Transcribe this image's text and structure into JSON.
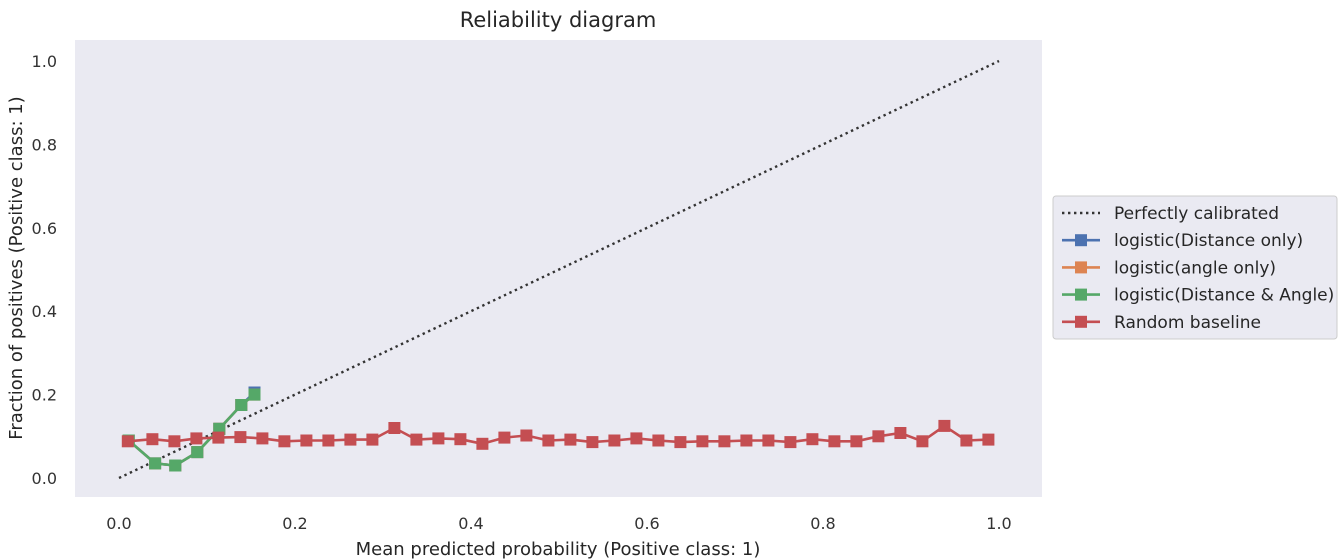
{
  "chart_data": {
    "type": "line",
    "title": "Reliability diagram",
    "xlabel": "Mean predicted probability (Positive class: 1)",
    "ylabel": "Fraction of positives (Positive class: 1)",
    "xlim": [
      -0.05,
      1.03
    ],
    "ylim": [
      -0.05,
      1.05
    ],
    "xticks": [
      "0.0",
      "0.2",
      "0.4",
      "0.6",
      "0.8",
      "1.0"
    ],
    "yticks": [
      "0.0",
      "0.2",
      "0.4",
      "0.6",
      "0.8",
      "1.0"
    ],
    "grid": false,
    "background": "#eaeaf2",
    "legend_position": "outside-right",
    "series": [
      {
        "name": "Perfectly calibrated",
        "color": "#333333",
        "style": "dotted",
        "marker": "none",
        "x": [
          0.0,
          1.0
        ],
        "y": [
          0.0,
          1.0
        ]
      },
      {
        "name": "logistic(Distance only)",
        "color": "#4c72b0",
        "style": "solid",
        "marker": "square",
        "x": [
          0.011,
          0.041,
          0.064,
          0.089,
          0.114,
          0.139,
          0.154
        ],
        "y": [
          0.09,
          0.035,
          0.03,
          0.062,
          0.118,
          0.175,
          0.205
        ]
      },
      {
        "name": "logistic(angle only)",
        "color": "#dd8452",
        "style": "solid",
        "marker": "square",
        "x": [
          0.011,
          0.041,
          0.064,
          0.089,
          0.114,
          0.139,
          0.154
        ],
        "y": [
          0.09,
          0.035,
          0.03,
          0.062,
          0.118,
          0.175,
          0.2
        ]
      },
      {
        "name": "logistic(Distance & Angle)",
        "color": "#55a868",
        "style": "solid",
        "marker": "square",
        "x": [
          0.011,
          0.041,
          0.064,
          0.089,
          0.114,
          0.139,
          0.154
        ],
        "y": [
          0.09,
          0.035,
          0.03,
          0.062,
          0.118,
          0.175,
          0.2
        ]
      },
      {
        "name": "Random baseline",
        "color": "#c44e52",
        "style": "solid",
        "marker": "square",
        "x": [
          0.01,
          0.038,
          0.063,
          0.088,
          0.113,
          0.138,
          0.163,
          0.188,
          0.213,
          0.238,
          0.263,
          0.288,
          0.313,
          0.338,
          0.363,
          0.388,
          0.413,
          0.438,
          0.463,
          0.488,
          0.513,
          0.538,
          0.563,
          0.588,
          0.613,
          0.638,
          0.663,
          0.688,
          0.713,
          0.738,
          0.763,
          0.788,
          0.813,
          0.838,
          0.863,
          0.888,
          0.913,
          0.938,
          0.963,
          0.988
        ],
        "y": [
          0.088,
          0.093,
          0.088,
          0.095,
          0.097,
          0.098,
          0.095,
          0.088,
          0.09,
          0.09,
          0.092,
          0.092,
          0.12,
          0.092,
          0.095,
          0.093,
          0.082,
          0.097,
          0.102,
          0.09,
          0.092,
          0.086,
          0.09,
          0.095,
          0.09,
          0.086,
          0.088,
          0.088,
          0.09,
          0.09,
          0.086,
          0.093,
          0.088,
          0.088,
          0.1,
          0.108,
          0.088,
          0.125,
          0.09,
          0.092
        ]
      }
    ]
  }
}
